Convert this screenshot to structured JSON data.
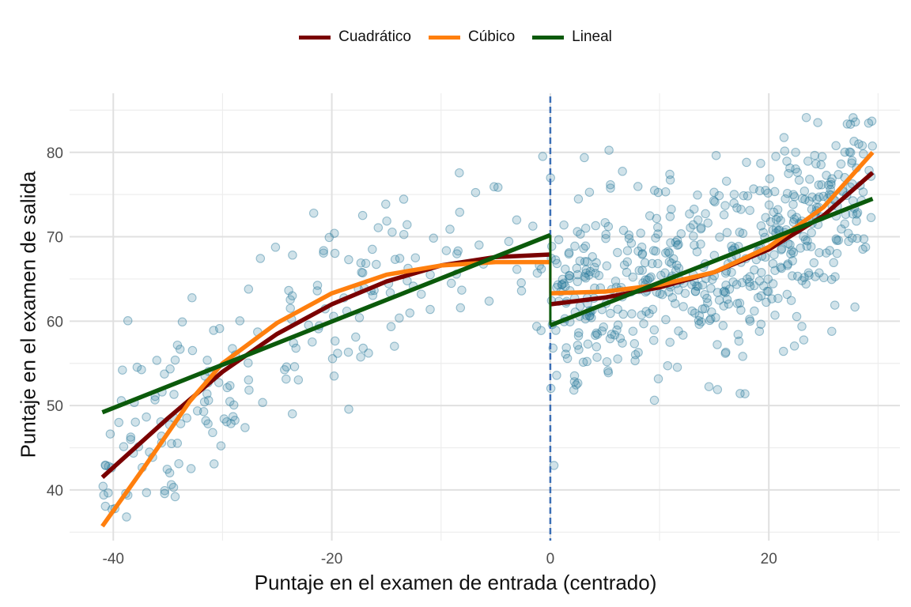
{
  "chart_data": {
    "type": "scatter",
    "title": "",
    "xlabel": "Puntaje en el examen de entrada (centrado)",
    "ylabel": "Puntaje en el examen de salida",
    "xlim": [
      -44,
      32
    ],
    "ylim": [
      34,
      87
    ],
    "x_ticks": [
      -40,
      -20,
      0,
      20
    ],
    "y_ticks": [
      40,
      50,
      60,
      70,
      80
    ],
    "x_tick_labels": [
      "-40",
      "-20",
      "0",
      "20"
    ],
    "y_tick_labels": [
      "40",
      "50",
      "60",
      "70",
      "80"
    ],
    "grid": true,
    "cutoff": 0,
    "legend_position": "top",
    "legend": [
      "Cuadrático",
      "Cúbico",
      "Lineal"
    ],
    "colors": {
      "points": "#2b7a9b",
      "cuadratico": "#7a0000",
      "cubico": "#ff7f0e",
      "lineal": "#0b5a0b",
      "cutoff_line": "#3b6fb6"
    },
    "series": [
      {
        "name": "Cuadrático",
        "segments": [
          {
            "x": [
              -41,
              -35,
              -30,
              -25,
              -20,
              -15,
              -10,
              -5,
              0
            ],
            "y": [
              41.5,
              48.5,
              54.0,
              58.5,
              62.0,
              64.7,
              66.6,
              67.6,
              67.9
            ]
          },
          {
            "x": [
              0,
              5,
              10,
              15,
              20,
              25,
              29.5
            ],
            "y": [
              62.0,
              62.8,
              64.0,
              65.8,
              68.5,
              72.5,
              77.6
            ]
          }
        ]
      },
      {
        "name": "Cúbico",
        "segments": [
          {
            "x": [
              -41,
              -37,
              -33,
              -30,
              -25,
              -20,
              -15,
              -10,
              -5,
              0
            ],
            "y": [
              35.7,
              43.0,
              50.5,
              55.0,
              59.8,
              63.3,
              65.5,
              66.6,
              67.0,
              67.0
            ]
          },
          {
            "x": [
              0,
              5,
              10,
              15,
              20,
              25,
              29.5
            ],
            "y": [
              63.3,
              63.5,
              64.3,
              65.8,
              68.8,
              73.5,
              80.0
            ]
          }
        ]
      },
      {
        "name": "Lineal",
        "segments": [
          {
            "x": [
              -41,
              0
            ],
            "y": [
              49.2,
              70.2
            ]
          },
          {
            "x": [
              0,
              29.5
            ],
            "y": [
              59.5,
              74.5
            ]
          }
        ]
      }
    ],
    "points_generation": {
      "left": {
        "n": 210,
        "x_range": [
          -41,
          0
        ]
      },
      "right": {
        "n": 560,
        "x_range": [
          0,
          29.5
        ]
      },
      "noise_sd": 5.5
    }
  }
}
